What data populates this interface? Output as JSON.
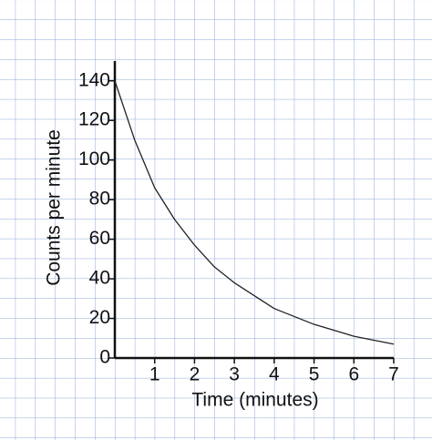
{
  "chart_data": {
    "type": "line",
    "x_label": "Time (minutes)",
    "y_label": "Counts per minute",
    "x": [
      0,
      0.5,
      1,
      1.5,
      2,
      2.5,
      3,
      4,
      5,
      6,
      7
    ],
    "values": [
      140,
      110,
      86,
      70,
      57,
      46,
      38,
      25,
      17,
      11,
      7
    ],
    "color": "#222222",
    "xlim": [
      0,
      7
    ],
    "xticks": [
      1,
      2,
      3,
      4,
      5,
      6,
      7
    ],
    "ylim": [
      0,
      150
    ],
    "yticks": [
      0,
      20,
      40,
      60,
      80,
      100,
      120,
      140
    ]
  }
}
